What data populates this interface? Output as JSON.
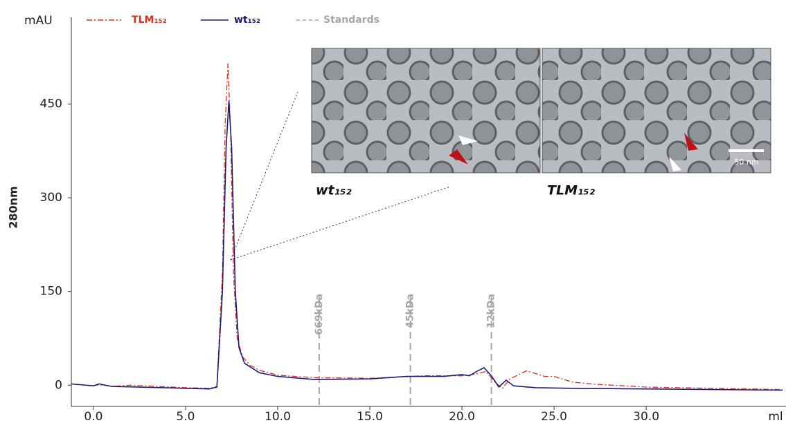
{
  "chart_data": {
    "type": "line",
    "y_unit": "mAU",
    "ylabel": "280nm",
    "xlabel": "ml",
    "xlim": [
      -1.2,
      37.4
    ],
    "ylim": [
      -34,
      589
    ],
    "xticks": [
      {
        "value": 0,
        "label": "0.0"
      },
      {
        "value": 5,
        "label": "5.0"
      },
      {
        "value": 10,
        "label": "10.0"
      },
      {
        "value": 15,
        "label": "15.0"
      },
      {
        "value": 20,
        "label": "20.0"
      },
      {
        "value": 25,
        "label": "25.0"
      },
      {
        "value": 30,
        "label": "30.0"
      }
    ],
    "yticks": [
      0,
      150,
      300,
      450
    ],
    "series": [
      {
        "name": "TLM₁₅₂",
        "color": "#d9301e",
        "x": [
          -1.2,
          0,
          0.3,
          1,
          2,
          5,
          6.3,
          6.7,
          7.0,
          7.15,
          7.3,
          7.45,
          7.6,
          7.8,
          8.1,
          8.5,
          9,
          10,
          12,
          15,
          18,
          20,
          20.8,
          21.3,
          21.8,
          22.2,
          22.6,
          23.5,
          24.5,
          25,
          26,
          27,
          30,
          37.4
        ],
        "values": [
          2,
          -1,
          1,
          -2,
          0,
          -4,
          -5,
          -2,
          180,
          420,
          515,
          400,
          180,
          75,
          45,
          32,
          24,
          16,
          12,
          11,
          15,
          15,
          18,
          22,
          5,
          -5,
          10,
          23,
          14,
          14,
          5,
          2,
          -3,
          -7
        ]
      },
      {
        "name": "wt₁₅₂",
        "color": "#1c1a78",
        "x": [
          -1.2,
          0,
          0.3,
          1,
          5,
          6.3,
          6.7,
          7.0,
          7.2,
          7.35,
          7.5,
          7.7,
          7.9,
          8.2,
          9,
          10,
          12,
          15,
          17,
          19,
          20,
          20.4,
          20.8,
          21.2,
          21.6,
          22,
          22.4,
          22.8,
          24,
          26,
          30,
          37.4
        ],
        "values": [
          2,
          -1,
          2,
          -2,
          -5,
          -6,
          -3,
          150,
          380,
          455,
          380,
          150,
          60,
          35,
          20,
          14,
          9,
          10,
          14,
          14,
          17,
          15,
          22,
          28,
          15,
          -3,
          8,
          -1,
          -4,
          -5,
          -6,
          -8
        ]
      }
    ],
    "standards": {
      "name": "Standards",
      "color": "#a6a6a6",
      "x": [
        12.25,
        17.2,
        21.6
      ],
      "labels": [
        "669kDa",
        "45kDa",
        "12kDa"
      ]
    },
    "insets": [
      {
        "label": "wt₁₅₂"
      },
      {
        "label": "TLM₁₅₂",
        "scale_bar": "50 nm"
      }
    ]
  }
}
